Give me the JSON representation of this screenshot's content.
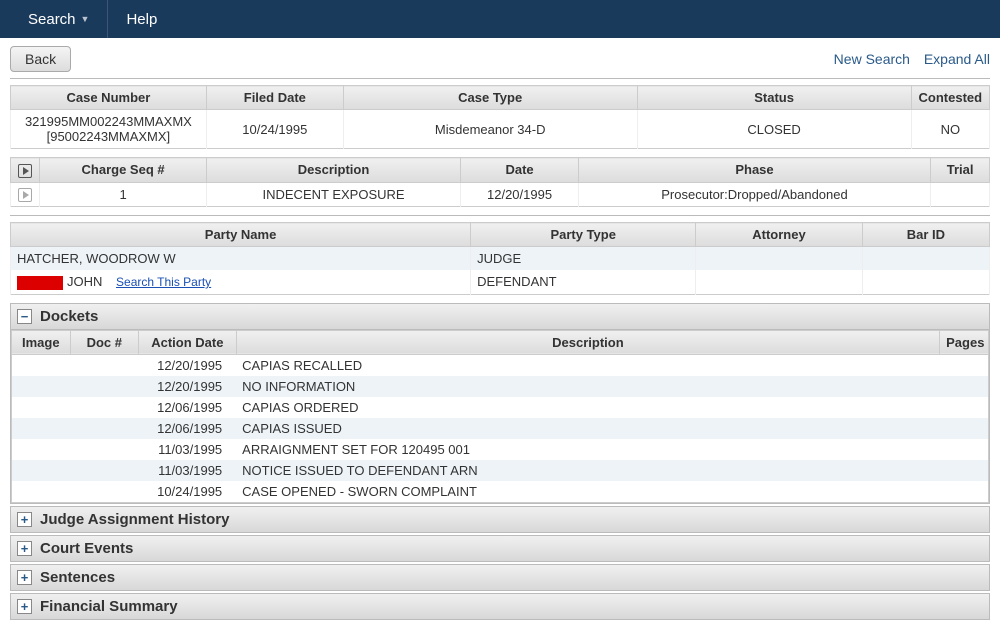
{
  "topbar": {
    "search": "Search",
    "help": "Help"
  },
  "toolbar": {
    "back": "Back",
    "new_search": "New Search",
    "expand_all": "Expand All"
  },
  "case": {
    "headers": {
      "case_number": "Case Number",
      "filed_date": "Filed Date",
      "case_type": "Case Type",
      "status": "Status",
      "contested": "Contested"
    },
    "case_number_line1": "321995MM002243MMAXMX",
    "case_number_line2": "[95002243MMAXMX]",
    "filed_date": "10/24/1995",
    "case_type": "Misdemeanor 34-D",
    "status": "CLOSED",
    "contested": "NO"
  },
  "charges": {
    "headers": {
      "seq": "Charge Seq #",
      "desc": "Description",
      "date": "Date",
      "phase": "Phase",
      "trial": "Trial"
    },
    "rows": [
      {
        "seq": "1",
        "desc": "INDECENT EXPOSURE",
        "date": "12/20/1995",
        "phase": "Prosecutor:Dropped/Abandoned",
        "trial": ""
      }
    ]
  },
  "parties": {
    "headers": {
      "name": "Party Name",
      "type": "Party Type",
      "attorney": "Attorney",
      "bar": "Bar ID"
    },
    "rows": [
      {
        "name": "HATCHER, WOODROW W",
        "type": "JUDGE",
        "redacted": false
      },
      {
        "name": "JOHN",
        "type": "DEFENDANT",
        "redacted": true,
        "search_link": "Search This Party"
      }
    ]
  },
  "dockets": {
    "title": "Dockets",
    "headers": {
      "image": "Image",
      "doc": "Doc #",
      "action_date": "Action Date",
      "desc": "Description",
      "pages": "Pages"
    },
    "rows": [
      {
        "date": "12/20/1995",
        "desc": "CAPIAS RECALLED"
      },
      {
        "date": "12/20/1995",
        "desc": "NO INFORMATION"
      },
      {
        "date": "12/06/1995",
        "desc": "CAPIAS ORDERED"
      },
      {
        "date": "12/06/1995",
        "desc": "CAPIAS ISSUED"
      },
      {
        "date": "11/03/1995",
        "desc": "ARRAIGNMENT SET FOR 120495 001"
      },
      {
        "date": "11/03/1995",
        "desc": "NOTICE ISSUED TO DEFENDANT ARN"
      },
      {
        "date": "10/24/1995",
        "desc": "CASE OPENED - SWORN COMPLAINT"
      }
    ]
  },
  "sections": {
    "judge": "Judge Assignment History",
    "events": "Court Events",
    "sentences": "Sentences",
    "financial": "Financial Summary"
  },
  "icons": {
    "minus": "−",
    "plus": "+"
  }
}
